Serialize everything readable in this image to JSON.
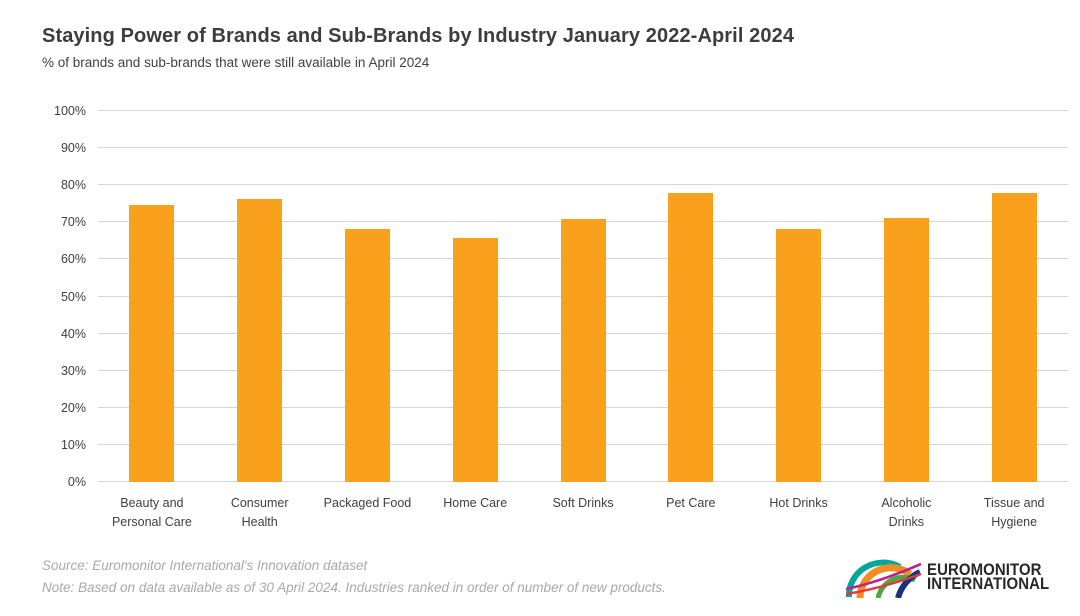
{
  "header": {
    "title": "Staying Power of Brands and Sub-Brands by Industry January 2022-April 2024",
    "subtitle": "% of brands and sub-brands that were still available in April 2024"
  },
  "chart_data": {
    "type": "bar",
    "title": "Staying Power of Brands and Sub-Brands by Industry January 2022-April 2024",
    "subtitle": "% of brands and sub-brands that were still available in April 2024",
    "categories": [
      [
        "Beauty and",
        "Personal Care"
      ],
      [
        "Consumer",
        "Health"
      ],
      [
        "Packaged Food"
      ],
      [
        "Home Care"
      ],
      [
        "Soft Drinks"
      ],
      [
        "Pet Care"
      ],
      [
        "Hot Drinks"
      ],
      [
        "Alcoholic",
        "Drinks"
      ],
      [
        "Tissue and",
        "Hygiene"
      ]
    ],
    "values": [
      74.8,
      76.3,
      68.1,
      65.8,
      70.8,
      78.0,
      68.3,
      71.2,
      78.0
    ],
    "xlabel": "",
    "ylabel": "",
    "ylim": [
      0,
      100
    ],
    "ytick_step": 10,
    "ytick_suffix": "%",
    "grid": true,
    "legend": false,
    "bar_color": "#F9A11C",
    "gridline_color": "#D6D6D6",
    "axis_text_color": "#404040"
  },
  "footer": {
    "source": "Source: Euromonitor International's Innovation dataset",
    "note": "Note: Based on data available as of 30 April 2024. Industries ranked in order of number of new products."
  },
  "logo": {
    "line1": "EUROMONITOR",
    "line2": "INTERNATIONAL",
    "arc_colors": {
      "teal": "#00A79D",
      "orange": "#F68B1F",
      "green": "#4BA643",
      "blue": "#16347C",
      "magenta": "#C02388",
      "red": "#E03A3E"
    }
  }
}
